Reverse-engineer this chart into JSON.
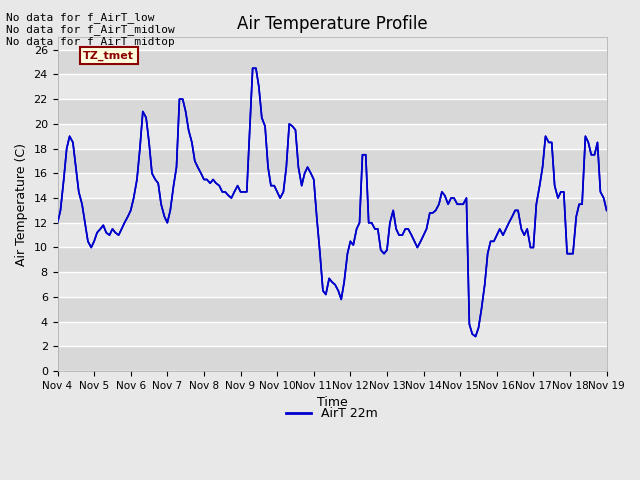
{
  "title": "Air Temperature Profile",
  "xlabel": "Time",
  "ylabel": "Air Temperature (C)",
  "line_color": "#0000cc",
  "line_width": 1.2,
  "background_color": "#e8e8e8",
  "ylim": [
    0,
    27
  ],
  "yticks": [
    0,
    2,
    4,
    6,
    8,
    10,
    12,
    14,
    16,
    18,
    20,
    22,
    24,
    26
  ],
  "legend_label": "AirT 22m",
  "annotations_top_left": [
    "No data for f_AirT_low",
    "No data for f_AirT_midlow",
    "No data for f_AirT_midtop"
  ],
  "annotation_box": "TZ_tmet",
  "x_tick_labels": [
    "Nov 4",
    "Nov 5",
    "Nov 6",
    "Nov 7",
    "Nov 8",
    "Nov 9",
    "Nov 10",
    "Nov 11",
    "Nov 12",
    "Nov 13",
    "Nov 14",
    "Nov 15",
    "Nov 16",
    "Nov 17",
    "Nov 18",
    "Nov 19"
  ],
  "time_data": [
    0.0,
    0.08,
    0.17,
    0.25,
    0.33,
    0.42,
    0.5,
    0.58,
    0.67,
    0.75,
    0.83,
    0.92,
    1.0,
    1.08,
    1.17,
    1.25,
    1.33,
    1.42,
    1.5,
    1.58,
    1.67,
    1.75,
    1.83,
    1.92,
    2.0,
    2.08,
    2.17,
    2.25,
    2.33,
    2.42,
    2.5,
    2.58,
    2.67,
    2.75,
    2.83,
    2.92,
    3.0,
    3.08,
    3.17,
    3.25,
    3.33,
    3.42,
    3.5,
    3.58,
    3.67,
    3.75,
    3.83,
    3.92,
    4.0,
    4.08,
    4.17,
    4.25,
    4.33,
    4.42,
    4.5,
    4.58,
    4.67,
    4.75,
    4.83,
    4.92,
    5.0,
    5.08,
    5.17,
    5.25,
    5.33,
    5.42,
    5.5,
    5.58,
    5.67,
    5.75,
    5.83,
    5.92,
    6.0,
    6.08,
    6.17,
    6.25,
    6.33,
    6.42,
    6.5,
    6.58,
    6.67,
    6.75,
    6.83,
    6.92,
    7.0,
    7.08,
    7.17,
    7.25,
    7.33,
    7.42,
    7.5,
    7.58,
    7.67,
    7.75,
    7.83,
    7.92,
    8.0,
    8.08,
    8.17,
    8.25,
    8.33,
    8.42,
    8.5,
    8.58,
    8.67,
    8.75,
    8.83,
    8.92,
    9.0,
    9.08,
    9.17,
    9.25,
    9.33,
    9.42,
    9.5,
    9.58,
    9.67,
    9.75,
    9.83,
    9.92,
    10.0,
    10.08,
    10.17,
    10.25,
    10.33,
    10.42,
    10.5,
    10.58,
    10.67,
    10.75,
    10.83,
    10.92,
    11.0,
    11.08,
    11.17,
    11.25,
    11.33,
    11.42,
    11.5,
    11.58,
    11.67,
    11.75,
    11.83,
    11.92,
    12.0,
    12.08,
    12.17,
    12.25,
    12.33,
    12.42,
    12.5,
    12.58,
    12.67,
    12.75,
    12.83,
    12.92,
    13.0,
    13.08,
    13.17,
    13.25,
    13.33,
    13.42,
    13.5,
    13.58,
    13.67,
    13.75,
    13.83,
    13.92,
    14.0,
    14.08,
    14.17,
    14.25,
    14.33,
    14.42,
    14.5,
    14.58,
    14.67,
    14.75,
    14.83,
    14.92,
    15.0
  ],
  "temp_data": [
    12.0,
    13.0,
    15.5,
    18.0,
    19.0,
    18.5,
    16.5,
    14.5,
    13.5,
    12.0,
    10.5,
    10.0,
    10.5,
    11.2,
    11.5,
    11.8,
    11.2,
    11.0,
    11.5,
    11.2,
    11.0,
    11.5,
    12.0,
    12.5,
    13.0,
    14.0,
    15.5,
    18.0,
    21.0,
    20.5,
    18.5,
    16.0,
    15.5,
    15.2,
    13.5,
    12.5,
    12.0,
    13.0,
    15.0,
    16.5,
    22.0,
    22.0,
    21.0,
    19.5,
    18.5,
    17.0,
    16.5,
    16.0,
    15.5,
    15.5,
    15.2,
    15.5,
    15.2,
    15.0,
    14.5,
    14.5,
    14.2,
    14.0,
    14.5,
    15.0,
    14.5,
    14.5,
    14.5,
    19.5,
    24.5,
    24.5,
    23.0,
    20.5,
    19.8,
    16.5,
    15.0,
    15.0,
    14.5,
    14.0,
    14.5,
    16.5,
    20.0,
    19.8,
    19.5,
    16.5,
    15.0,
    16.0,
    16.5,
    16.0,
    15.5,
    12.5,
    9.5,
    6.5,
    6.2,
    7.5,
    7.2,
    7.0,
    6.5,
    5.8,
    7.2,
    9.5,
    10.5,
    10.2,
    11.5,
    12.0,
    17.5,
    17.5,
    12.0,
    12.0,
    11.5,
    11.5,
    9.8,
    9.5,
    9.8,
    12.0,
    13.0,
    11.5,
    11.0,
    11.0,
    11.5,
    11.5,
    11.0,
    10.5,
    10.0,
    10.5,
    11.0,
    11.5,
    12.8,
    12.8,
    13.0,
    13.5,
    14.5,
    14.2,
    13.5,
    14.0,
    14.0,
    13.5,
    13.5,
    13.5,
    14.0,
    3.8,
    3.0,
    2.8,
    3.5,
    5.0,
    7.0,
    9.5,
    10.5,
    10.5,
    11.0,
    11.5,
    11.0,
    11.5,
    12.0,
    12.5,
    13.0,
    13.0,
    11.5,
    11.0,
    11.5,
    10.0,
    10.0,
    13.5,
    15.0,
    16.5,
    19.0,
    18.5,
    18.5,
    15.0,
    14.0,
    14.5,
    14.5,
    9.5,
    9.5,
    9.5,
    12.5,
    13.5,
    13.5,
    19.0,
    18.5,
    17.5,
    17.5,
    18.5,
    14.5,
    14.0,
    13.0
  ]
}
